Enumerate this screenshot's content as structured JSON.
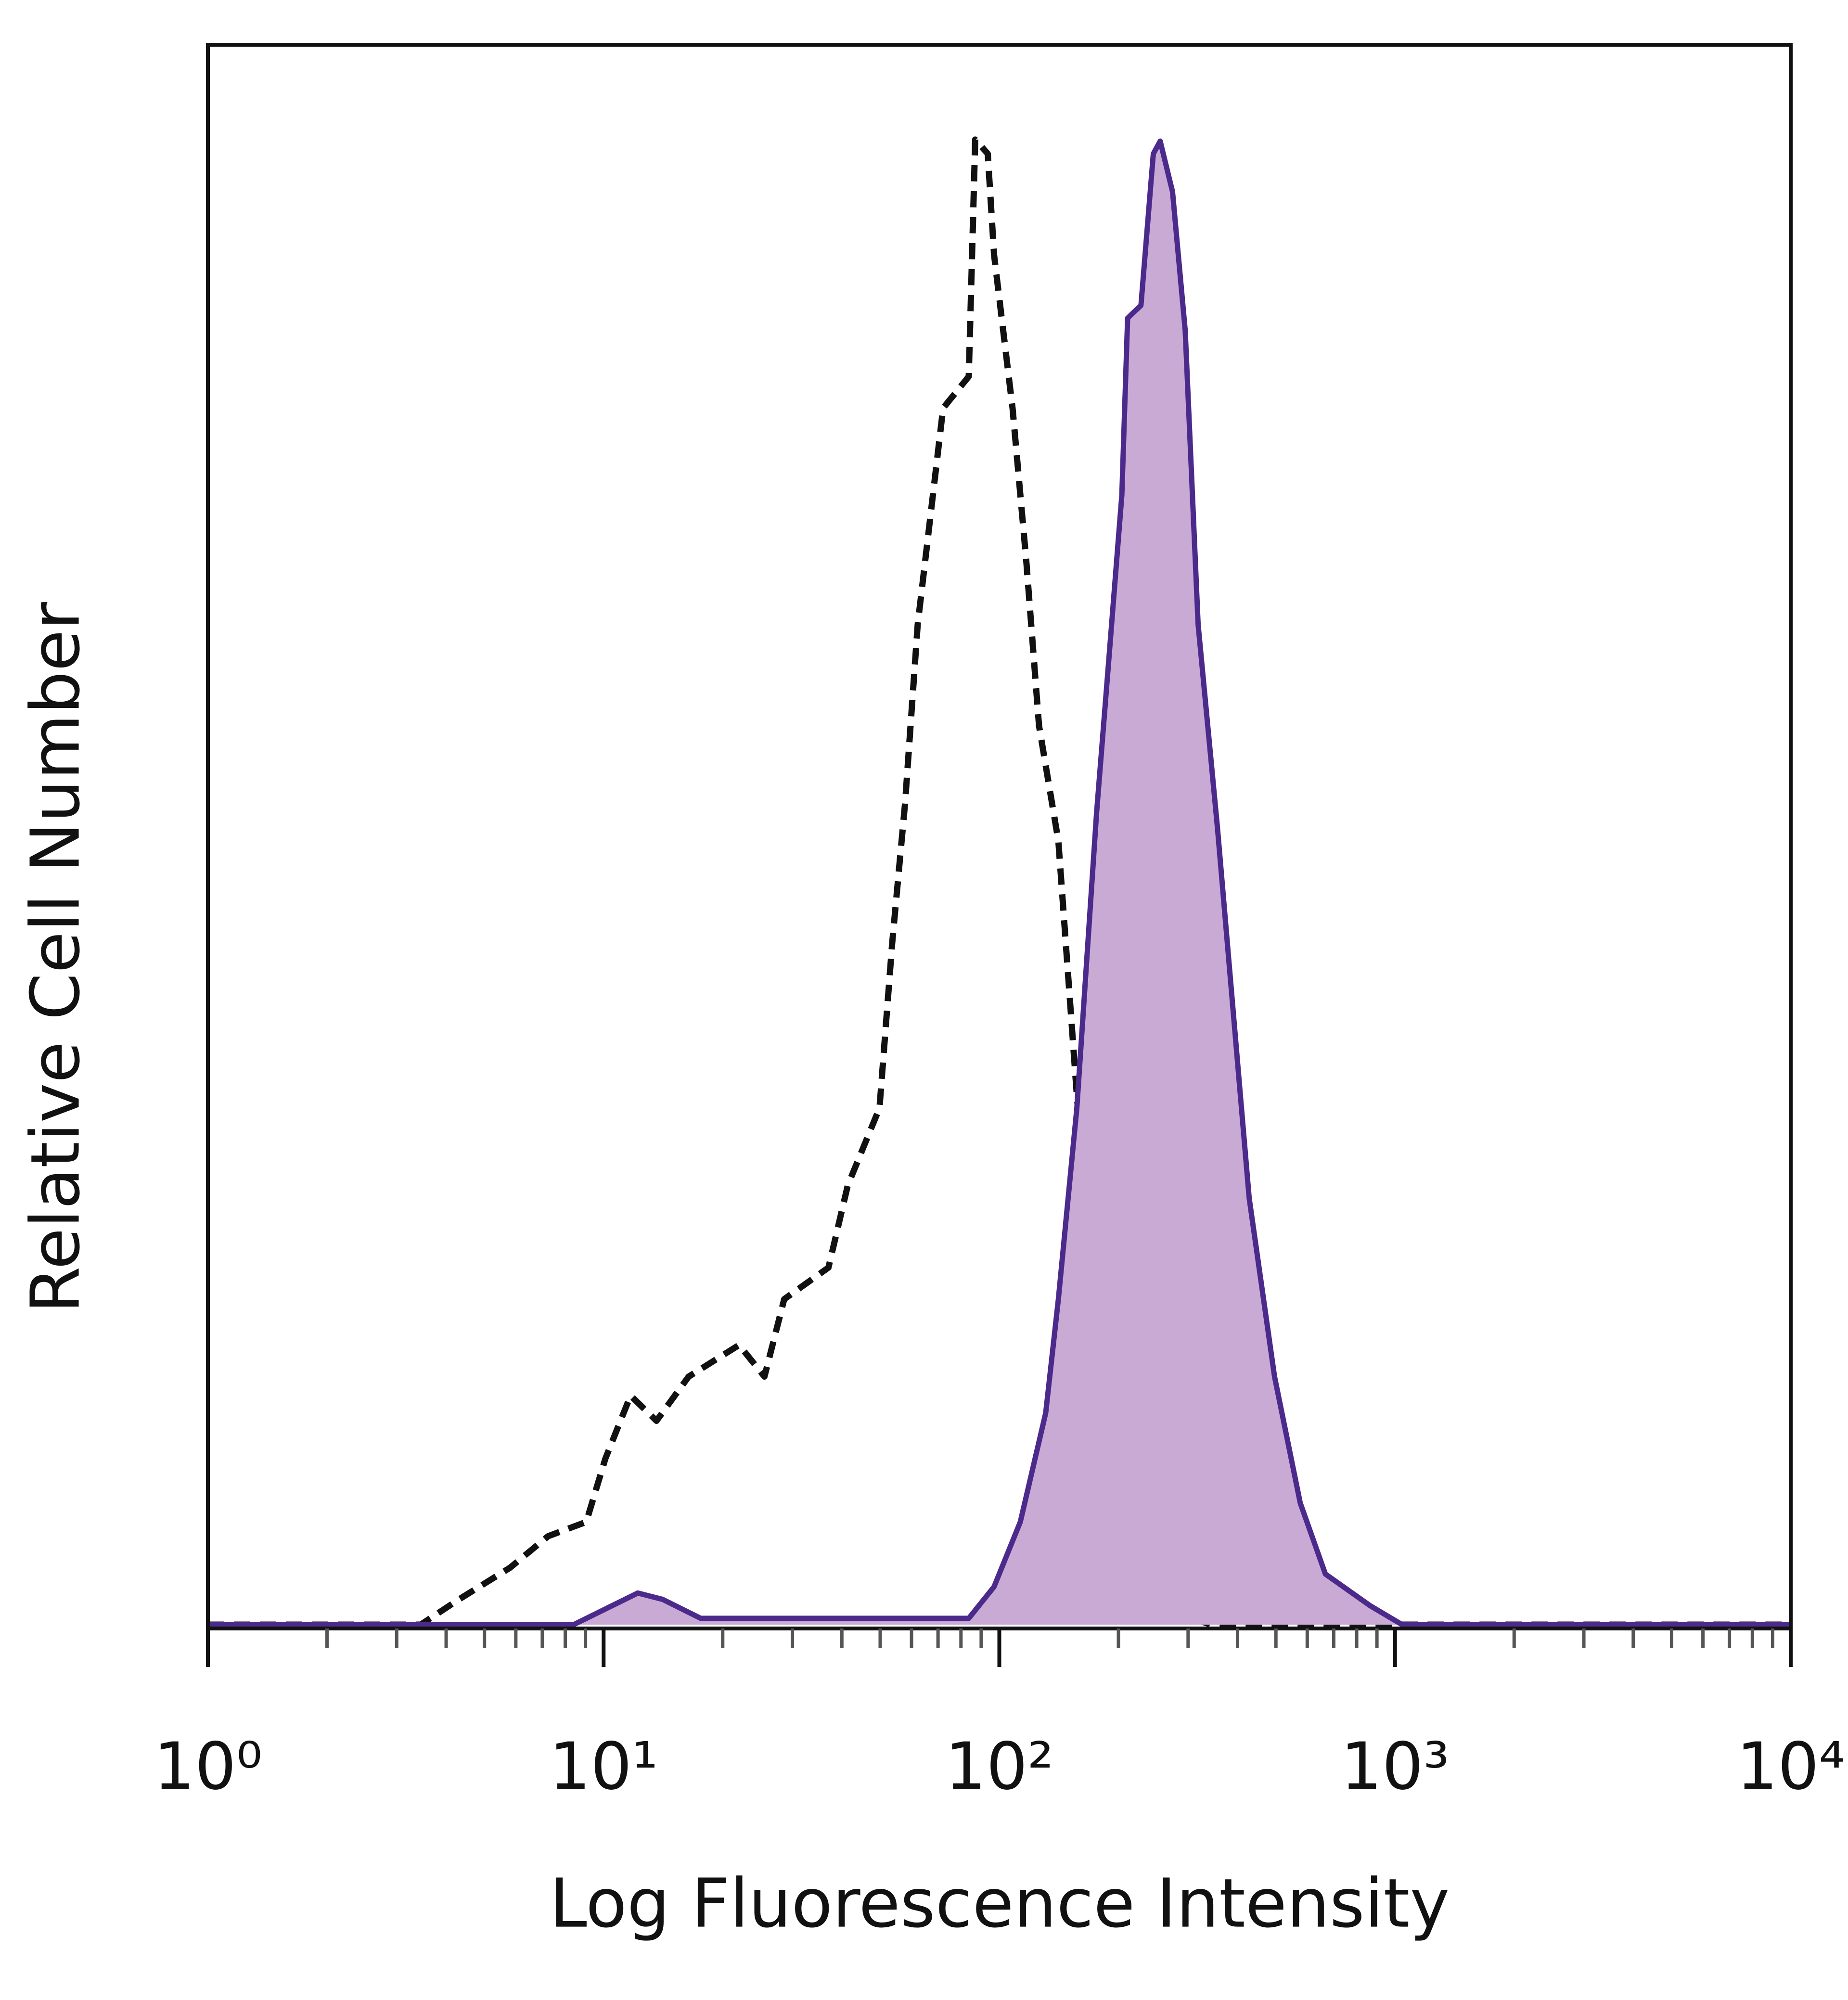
{
  "chart_data": {
    "type": "line",
    "x_label": "Log Fluorescence Intensity",
    "y_label": "Relative Cell Number",
    "x_scale": "log",
    "xlim": [
      1,
      10000
    ],
    "xticks": [
      {
        "value": 1,
        "label": "10⁰"
      },
      {
        "value": 10,
        "label": "10¹"
      },
      {
        "value": 100,
        "label": "10²"
      },
      {
        "value": 1000,
        "label": "10³"
      },
      {
        "value": 10000,
        "label": "10⁴"
      }
    ],
    "xminorticks": [
      2,
      3,
      4,
      5,
      6,
      7,
      8,
      9,
      20,
      30,
      40,
      50,
      60,
      70,
      80,
      90,
      200,
      300,
      400,
      500,
      600,
      700,
      800,
      900,
      2000,
      3000,
      4000,
      5000,
      6000,
      7000,
      8000,
      9000
    ],
    "ylim": [
      0,
      100
    ],
    "series": [
      {
        "color": "#111111",
        "linestyle": "dashed",
        "x": [
          1,
          3.45,
          4.31,
          5.8,
          7.24,
          9.04,
          10.1,
          11.7,
          13.6,
          16.4,
          22.0,
          25.5,
          28.6,
          37.0,
          41.4,
          49.8,
          53.6,
          57.8,
          62.2,
          72.1,
          83.7,
          86.9,
          93.5,
          97.0,
          108,
          117,
          126,
          141,
          157,
          169,
          189,
          236,
          274,
          343,
          10000
        ],
        "values": [
          0,
          0,
          1.6,
          3.6,
          5.6,
          6.5,
          10.5,
          14.5,
          12.9,
          15.7,
          17.7,
          15.7,
          20.6,
          22.6,
          27.8,
          32.7,
          43.1,
          52.0,
          63.3,
          77.0,
          79.0,
          94.0,
          93.1,
          86.7,
          77.0,
          67.3,
          56.9,
          49.6,
          33.5,
          23.0,
          13.3,
          4.4,
          0.8,
          0,
          0
        ]
      },
      {
        "color": "#4b2a8c",
        "fill": "#c9aad5",
        "linestyle": "solid",
        "x": [
          1,
          8.4,
          12.2,
          14.1,
          17.6,
          83.7,
          97.0,
          113,
          131,
          141,
          157,
          176,
          189,
          204,
          211,
          228,
          245,
          255,
          274,
          295,
          318,
          356,
          428,
          496,
          576,
          667,
          865,
          1042,
          10000
        ],
        "values": [
          0,
          0,
          2.0,
          1.6,
          0.4,
          0.4,
          2.4,
          6.5,
          13.4,
          20.6,
          32.7,
          51.3,
          61.0,
          71.5,
          82.7,
          83.5,
          93.1,
          93.9,
          90.7,
          81.9,
          63.3,
          50.4,
          27.0,
          15.7,
          7.7,
          3.2,
          1.2,
          0,
          0
        ]
      }
    ]
  }
}
